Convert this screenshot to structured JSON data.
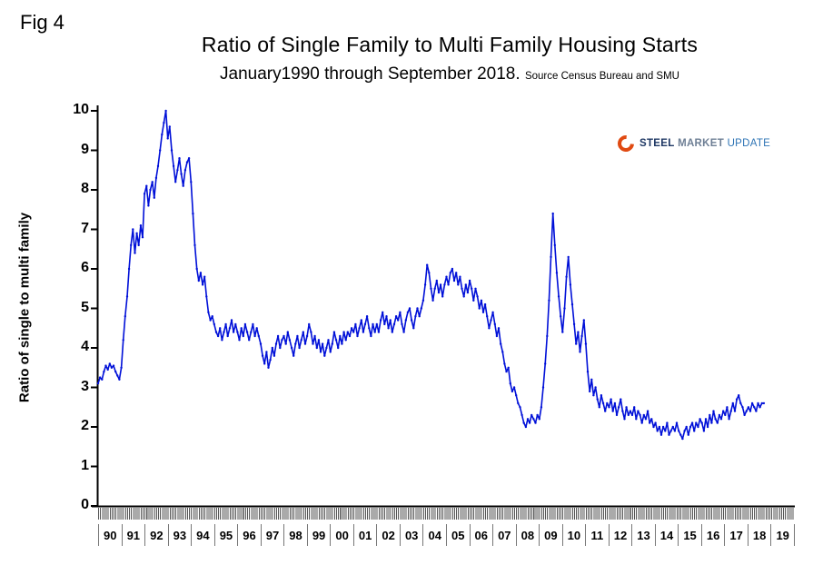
{
  "fig_label": "Fig 4",
  "header": {
    "title": "Ratio of Single Family to Multi Family Housing Starts",
    "subtitle": "January1990 through September 2018.",
    "source": "Source Census Bureau and SMU"
  },
  "logo": {
    "word1": "STEEL",
    "word2": "MARKET",
    "word3": "UPDATE"
  },
  "ylabel": "Ratio of single to multi family",
  "chart_data": {
    "type": "line",
    "title": "Ratio of Single Family to Multi Family Housing Starts",
    "subtitle": "January1990 through September 2018.",
    "source": "Source Census Bureau and SMU",
    "ylabel": "Ratio of single to multi family",
    "xlabel": "",
    "line_color": "#0010d8",
    "ylim": [
      0,
      10
    ],
    "yticks": [
      0,
      1,
      2,
      3,
      4,
      5,
      6,
      7,
      8,
      9,
      10
    ],
    "grid": false,
    "legend": "none",
    "x_frequency": "monthly",
    "x_start": "1990-01",
    "x_end": "2018-09",
    "x_tick_labels": [
      "90",
      "91",
      "92",
      "93",
      "94",
      "95",
      "96",
      "97",
      "98",
      "99",
      "00",
      "01",
      "02",
      "03",
      "04",
      "05",
      "06",
      "07",
      "08",
      "09",
      "10",
      "11",
      "12",
      "13",
      "14",
      "15",
      "16",
      "17",
      "18",
      "19"
    ],
    "values": [
      3.1,
      3.25,
      3.2,
      3.4,
      3.55,
      3.45,
      3.6,
      3.5,
      3.55,
      3.4,
      3.3,
      3.2,
      3.5,
      4.2,
      4.8,
      5.3,
      6.0,
      6.6,
      7.0,
      6.4,
      6.9,
      6.6,
      7.1,
      6.8,
      7.9,
      8.1,
      7.6,
      8.0,
      8.2,
      7.8,
      8.3,
      8.6,
      9.0,
      9.4,
      9.7,
      10.0,
      9.3,
      9.6,
      9.0,
      8.6,
      8.2,
      8.5,
      8.8,
      8.4,
      8.1,
      8.5,
      8.7,
      8.8,
      8.2,
      7.4,
      6.6,
      6.0,
      5.7,
      5.9,
      5.6,
      5.8,
      5.3,
      4.9,
      4.7,
      4.8,
      4.6,
      4.4,
      4.3,
      4.5,
      4.2,
      4.4,
      4.6,
      4.3,
      4.5,
      4.7,
      4.4,
      4.6,
      4.4,
      4.2,
      4.5,
      4.3,
      4.6,
      4.4,
      4.2,
      4.4,
      4.6,
      4.3,
      4.5,
      4.3,
      4.1,
      3.8,
      3.6,
      3.9,
      3.5,
      3.7,
      4.0,
      3.8,
      4.1,
      4.3,
      4.0,
      4.2,
      4.3,
      4.1,
      4.4,
      4.2,
      4.0,
      3.8,
      4.1,
      4.3,
      4.0,
      4.2,
      4.4,
      4.1,
      4.3,
      4.6,
      4.4,
      4.1,
      4.3,
      4.0,
      4.2,
      3.9,
      4.1,
      3.8,
      4.0,
      4.2,
      3.9,
      4.1,
      4.4,
      4.2,
      4.0,
      4.3,
      4.1,
      4.4,
      4.2,
      4.4,
      4.3,
      4.5,
      4.4,
      4.6,
      4.3,
      4.5,
      4.7,
      4.4,
      4.6,
      4.8,
      4.5,
      4.3,
      4.6,
      4.4,
      4.6,
      4.4,
      4.7,
      4.9,
      4.6,
      4.8,
      4.5,
      4.7,
      4.4,
      4.6,
      4.8,
      4.7,
      4.9,
      4.6,
      4.4,
      4.7,
      4.9,
      5.0,
      4.7,
      4.5,
      4.8,
      5.0,
      4.8,
      5.0,
      5.2,
      5.6,
      6.1,
      5.9,
      5.5,
      5.2,
      5.5,
      5.7,
      5.4,
      5.6,
      5.3,
      5.6,
      5.8,
      5.6,
      5.9,
      6.0,
      5.7,
      5.9,
      5.6,
      5.8,
      5.5,
      5.3,
      5.6,
      5.4,
      5.7,
      5.5,
      5.2,
      5.5,
      5.3,
      5.0,
      5.2,
      4.9,
      5.1,
      4.8,
      4.5,
      4.7,
      4.9,
      4.6,
      4.3,
      4.5,
      4.1,
      3.9,
      3.6,
      3.4,
      3.5,
      3.1,
      2.9,
      3.0,
      2.8,
      2.6,
      2.5,
      2.3,
      2.1,
      2.0,
      2.2,
      2.1,
      2.3,
      2.2,
      2.1,
      2.3,
      2.2,
      2.5,
      3.0,
      3.6,
      4.3,
      5.2,
      6.3,
      7.4,
      6.6,
      5.9,
      5.3,
      4.8,
      4.4,
      5.0,
      5.8,
      6.3,
      5.6,
      5.1,
      4.6,
      4.1,
      4.4,
      3.9,
      4.3,
      4.7,
      4.1,
      3.4,
      2.9,
      3.2,
      2.8,
      3.0,
      2.7,
      2.5,
      2.8,
      2.6,
      2.4,
      2.6,
      2.5,
      2.7,
      2.4,
      2.6,
      2.3,
      2.5,
      2.7,
      2.4,
      2.2,
      2.5,
      2.3,
      2.4,
      2.3,
      2.5,
      2.2,
      2.4,
      2.3,
      2.1,
      2.3,
      2.2,
      2.4,
      2.1,
      2.2,
      2.0,
      2.1,
      1.9,
      2.0,
      1.8,
      2.0,
      1.9,
      2.1,
      1.8,
      1.9,
      2.0,
      1.9,
      2.1,
      1.9,
      1.8,
      1.7,
      1.9,
      2.0,
      1.8,
      2.0,
      2.1,
      1.9,
      2.1,
      2.0,
      2.2,
      2.1,
      1.9,
      2.2,
      2.0,
      2.3,
      2.1,
      2.4,
      2.2,
      2.1,
      2.3,
      2.2,
      2.4,
      2.3,
      2.5,
      2.2,
      2.4,
      2.6,
      2.4,
      2.7,
      2.8,
      2.6,
      2.5,
      2.3,
      2.4,
      2.5,
      2.4,
      2.6,
      2.5,
      2.4,
      2.6,
      2.5,
      2.6,
      2.6
    ]
  }
}
